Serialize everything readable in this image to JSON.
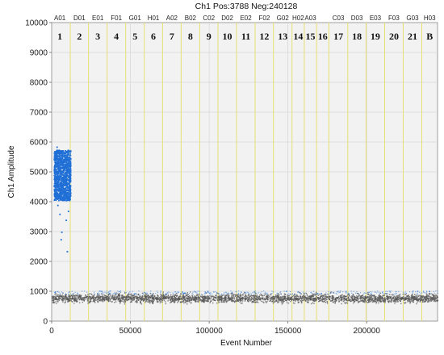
{
  "chart_data": {
    "type": "scatter",
    "title": "Ch1 Pos:3788 Neg:240128",
    "xlabel": "Event Number",
    "ylabel": "Ch1 Amplitude",
    "xlim": [
      0,
      245000
    ],
    "ylim": [
      0,
      10000
    ],
    "x_ticks": [
      0,
      50000,
      100000,
      150000,
      200000
    ],
    "x_tick_labels": [
      "0",
      "50000",
      "100000",
      "150000",
      "200000"
    ],
    "y_ticks": [
      0,
      1000,
      2000,
      3000,
      4000,
      5000,
      6000,
      7000,
      8000,
      9000,
      10000
    ],
    "y_tick_labels": [
      "0",
      "1000",
      "2000",
      "3000",
      "4000",
      "5000",
      "6000",
      "7000",
      "8000",
      "9000",
      "10000"
    ],
    "grid": true,
    "well_boundaries": [
      11800,
      23400,
      35200,
      47000,
      58800,
      70400,
      82200,
      94000,
      105600,
      117400,
      129200,
      140800,
      152600,
      160400,
      168200,
      176000,
      188000,
      199600,
      211400,
      223200,
      235000
    ],
    "wells": [
      {
        "well": "A01",
        "sample": "1",
        "x": 5200
      },
      {
        "well": "D01",
        "sample": "2",
        "x": 17600
      },
      {
        "well": "E01",
        "sample": "3",
        "x": 29300
      },
      {
        "well": "F01",
        "sample": "4",
        "x": 41100
      },
      {
        "well": "G01",
        "sample": "5",
        "x": 52900
      },
      {
        "well": "H01",
        "sample": "6",
        "x": 64600
      },
      {
        "well": "A02",
        "sample": "7",
        "x": 76300
      },
      {
        "well": "B02",
        "sample": "8",
        "x": 88100
      },
      {
        "well": "C02",
        "sample": "9",
        "x": 99800
      },
      {
        "well": "D02",
        "sample": "10",
        "x": 111500
      },
      {
        "well": "E02",
        "sample": "11",
        "x": 123300
      },
      {
        "well": "F02",
        "sample": "12",
        "x": 135000
      },
      {
        "well": "G02",
        "sample": "13",
        "x": 146700
      },
      {
        "well": "H02",
        "sample": "14",
        "x": 156500
      },
      {
        "well": "A03",
        "sample": "15",
        "x": 164300
      },
      {
        "well": "",
        "sample": "16",
        "x": 172100
      },
      {
        "well": "C03",
        "sample": "17",
        "x": 182000
      },
      {
        "well": "D03",
        "sample": "18",
        "x": 193800
      },
      {
        "well": "E03",
        "sample": "19",
        "x": 205500
      },
      {
        "well": "F03",
        "sample": "20",
        "x": 217300
      },
      {
        "well": "G03",
        "sample": "21",
        "x": 229100
      },
      {
        "well": "H03",
        "sample": "B",
        "x": 240000
      }
    ],
    "series": [
      {
        "name": "positive",
        "color": "#1f6fd6",
        "x_range": [
          1200,
          11800
        ],
        "y_range": [
          4050,
          5750
        ],
        "outliers": [
          [
            3500,
            3900
          ],
          [
            4800,
            3600
          ],
          [
            6000,
            3000
          ],
          [
            5600,
            2750
          ],
          [
            8800,
            3400
          ],
          [
            9500,
            2350
          ],
          [
            10200,
            3700
          ],
          [
            3000,
            5850
          ]
        ]
      },
      {
        "name": "negative",
        "color": "#555555",
        "x_range": [
          0,
          245000
        ],
        "y_center": 780,
        "y_spread": 130
      }
    ],
    "colors": {
      "background": "#f2f2f2",
      "boundary": "#e6e070",
      "grid": "#d6d6d6",
      "positive": "#1f6fd6",
      "negative": "#555555"
    }
  }
}
